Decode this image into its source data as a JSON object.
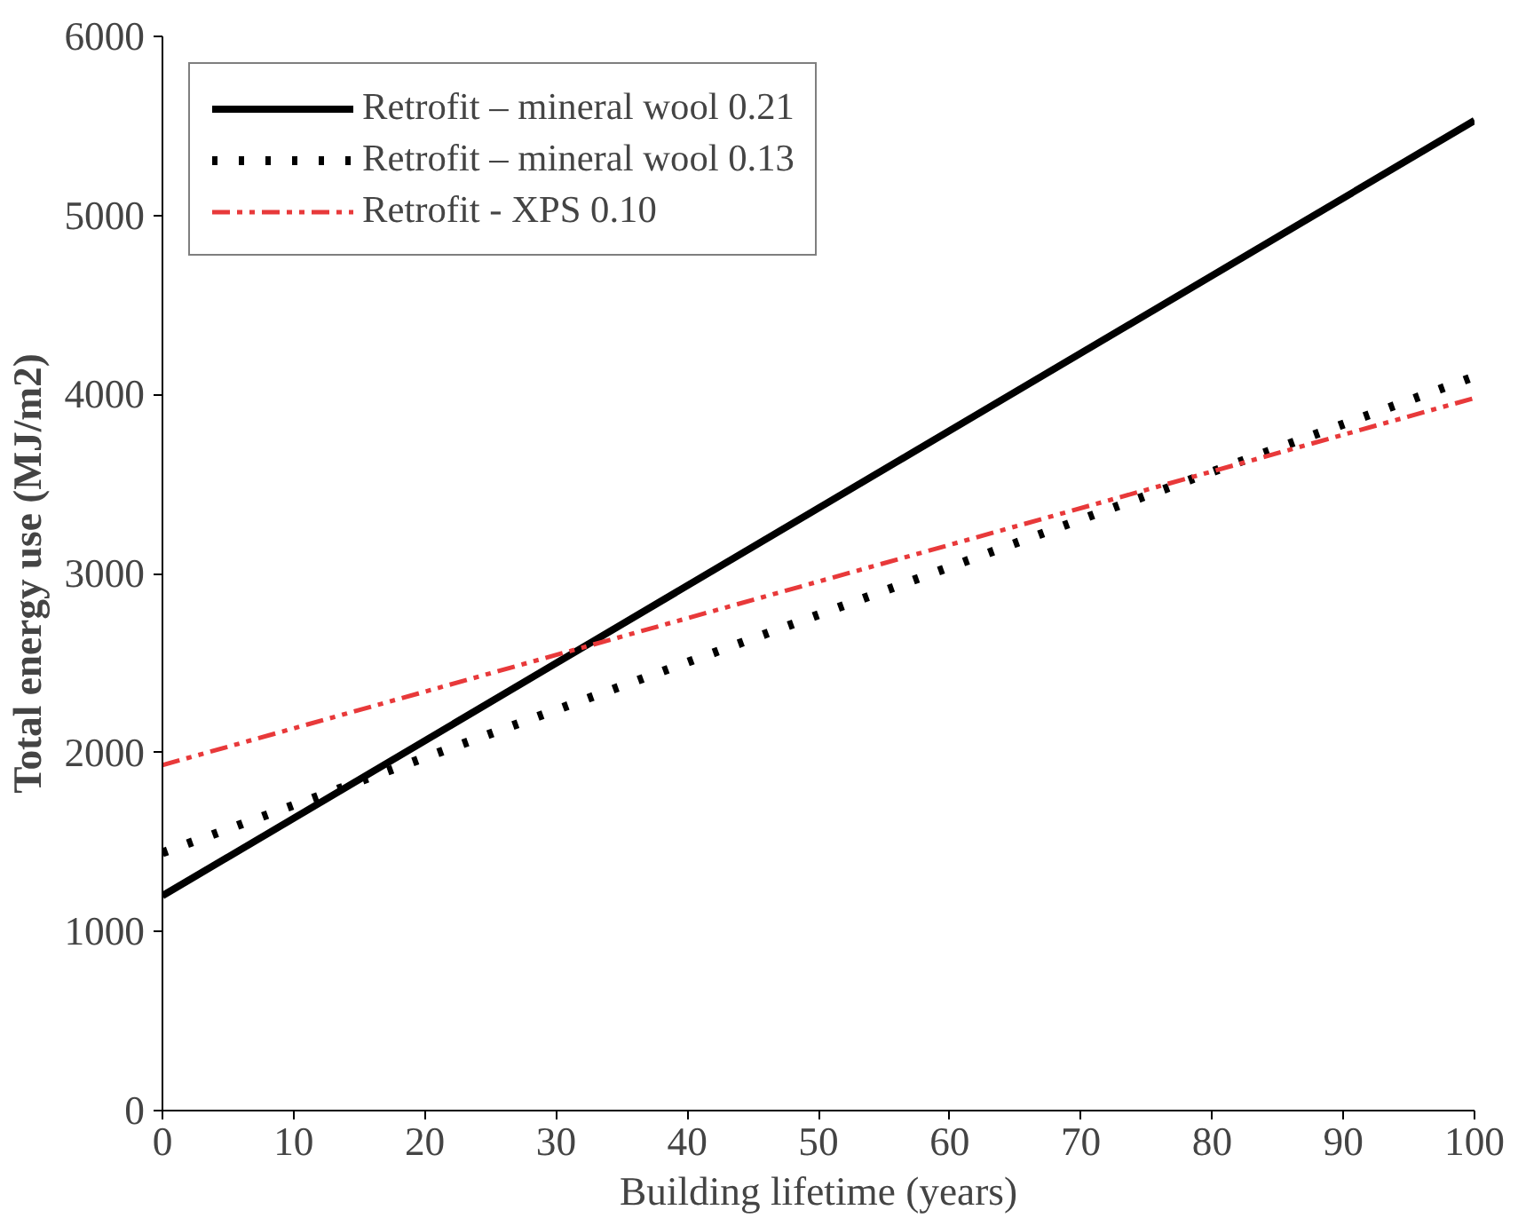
{
  "chart_data": {
    "type": "line",
    "xlabel": "Building lifetime (years)",
    "ylabel": "Total energy use (MJ/m2)",
    "x": [
      0,
      100
    ],
    "series": [
      {
        "name": "Retrofit – mineral wool 0.21",
        "color": "#000000",
        "values": [
          1200,
          5530
        ],
        "line_style": "solid"
      },
      {
        "name": "Retrofit – mineral wool 0.13",
        "color": "#000000",
        "values": [
          1440,
          4100
        ],
        "line_style": "dotted"
      },
      {
        "name": "Retrofit - XPS 0.10",
        "color": "#e8393a",
        "values": [
          1930,
          3980
        ],
        "line_style": "dashed"
      }
    ],
    "xlim": [
      0,
      100
    ],
    "xticks": [
      0,
      10,
      20,
      30,
      40,
      50,
      60,
      70,
      80,
      90,
      100
    ],
    "ylim": [
      0,
      6000
    ],
    "yticks": [
      0,
      1000,
      2000,
      3000,
      4000,
      5000,
      6000
    ],
    "grid": false,
    "legend": "top left",
    "marker": "none"
  }
}
